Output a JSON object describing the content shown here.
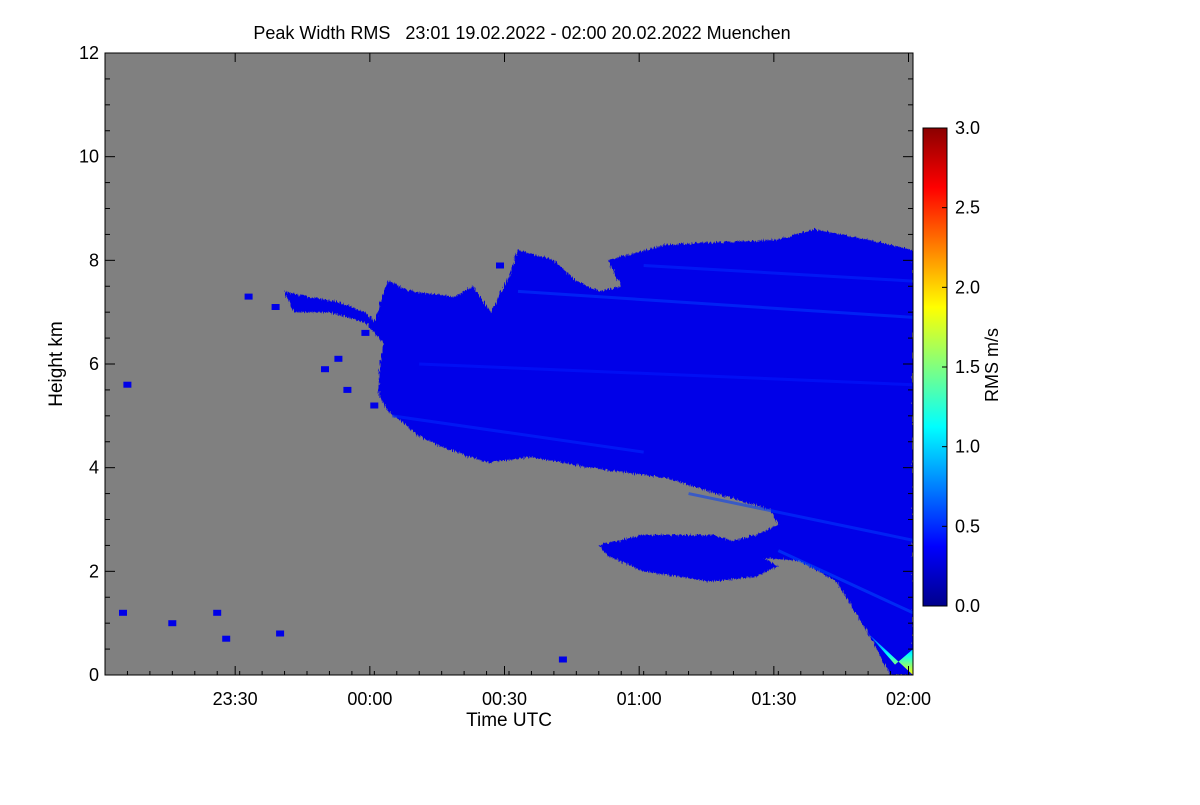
{
  "chart_data": {
    "type": "heatmap",
    "title": "Peak Width RMS   23:01 19.02.2022 - 02:00 20.02.2022 Muenchen",
    "xlabel": "Time UTC",
    "ylabel": "Height km",
    "x_ticks": [
      "23:30",
      "00:00",
      "00:30",
      "01:00",
      "01:30",
      "02:00"
    ],
    "x_tick_minutes": [
      29,
      59,
      89,
      119,
      149,
      179
    ],
    "xlim_minutes": [
      0,
      180
    ],
    "y_ticks": [
      0,
      2,
      4,
      6,
      8,
      10,
      12
    ],
    "ylim": [
      0,
      12
    ],
    "background_color": "#808080",
    "colorbar": {
      "label": "RMS m/s",
      "ticks": [
        "0.0",
        "0.5",
        "1.0",
        "1.5",
        "2.0",
        "2.5",
        "3.0"
      ],
      "tick_values": [
        0,
        0.5,
        1.0,
        1.5,
        2.0,
        2.5,
        3.0
      ],
      "range": [
        0,
        3.0
      ],
      "colors": [
        "#00008b",
        "#0000ff",
        "#0080ff",
        "#00ffff",
        "#80ff80",
        "#ffff00",
        "#ff8000",
        "#ff0000",
        "#8b0000"
      ]
    },
    "echo_region": {
      "description_value": "dominant RMS",
      "typical_rms": 0.3,
      "outline": [
        [
          40,
          7.4
        ],
        [
          45,
          7.3
        ],
        [
          52,
          7.2
        ],
        [
          58,
          7.0
        ],
        [
          60,
          6.8
        ],
        [
          63,
          7.6
        ],
        [
          68,
          7.4
        ],
        [
          78,
          7.3
        ],
        [
          82,
          7.5
        ],
        [
          86,
          7.0
        ],
        [
          90,
          7.7
        ],
        [
          92,
          8.2
        ],
        [
          100,
          8.0
        ],
        [
          105,
          7.6
        ],
        [
          110,
          7.4
        ],
        [
          115,
          7.5
        ],
        [
          112,
          8.0
        ],
        [
          125,
          8.3
        ],
        [
          150,
          8.4
        ],
        [
          158,
          8.6
        ],
        [
          170,
          8.4
        ],
        [
          180,
          8.2
        ],
        [
          180,
          0.0
        ],
        [
          175,
          0.0
        ],
        [
          170,
          0.8
        ],
        [
          163,
          1.8
        ],
        [
          155,
          2.2
        ],
        [
          140,
          2.3
        ],
        [
          136,
          2.5
        ],
        [
          145,
          2.7
        ],
        [
          150,
          2.9
        ],
        [
          148,
          3.2
        ],
        [
          136,
          3.5
        ],
        [
          125,
          3.8
        ],
        [
          108,
          4.0
        ],
        [
          95,
          4.2
        ],
        [
          85,
          4.1
        ],
        [
          75,
          4.4
        ],
        [
          70,
          4.6
        ],
        [
          66,
          4.9
        ],
        [
          63,
          5.1
        ],
        [
          61,
          5.4
        ],
        [
          61,
          5.8
        ],
        [
          62,
          6.4
        ],
        [
          58,
          6.8
        ],
        [
          50,
          7.0
        ],
        [
          42,
          7.0
        ]
      ],
      "low_layer": [
        [
          110,
          2.5
        ],
        [
          120,
          2.7
        ],
        [
          136,
          2.7
        ],
        [
          142,
          2.5
        ],
        [
          150,
          2.1
        ],
        [
          145,
          1.9
        ],
        [
          135,
          1.8
        ],
        [
          120,
          2.0
        ],
        [
          112,
          2.3
        ]
      ]
    },
    "isolated_echoes": [
      {
        "x": 88,
        "y": 7.9,
        "rms": 0.3
      },
      {
        "x": 32,
        "y": 7.3,
        "rms": 0.3
      },
      {
        "x": 38,
        "y": 7.1,
        "rms": 0.3
      },
      {
        "x": 58,
        "y": 6.6,
        "rms": 0.3
      },
      {
        "x": 52,
        "y": 6.1,
        "rms": 0.3
      },
      {
        "x": 49,
        "y": 5.9,
        "rms": 0.3
      },
      {
        "x": 54,
        "y": 5.5,
        "rms": 0.3
      },
      {
        "x": 60,
        "y": 5.2,
        "rms": 0.3
      },
      {
        "x": 5,
        "y": 5.6,
        "rms": 0.3
      },
      {
        "x": 4,
        "y": 1.2,
        "rms": 0.3
      },
      {
        "x": 15,
        "y": 1.0,
        "rms": 0.3
      },
      {
        "x": 25,
        "y": 1.2,
        "rms": 0.3
      },
      {
        "x": 27,
        "y": 0.7,
        "rms": 0.3
      },
      {
        "x": 39,
        "y": 0.8,
        "rms": 0.3
      },
      {
        "x": 102,
        "y": 0.3,
        "rms": 0.3
      }
    ],
    "high_rms_region": [
      [
        170,
        0.8
      ],
      [
        180,
        0.0
      ],
      [
        180,
        0.5
      ],
      [
        176,
        0.2
      ]
    ],
    "grid": false,
    "legend": "colorbar-right"
  }
}
